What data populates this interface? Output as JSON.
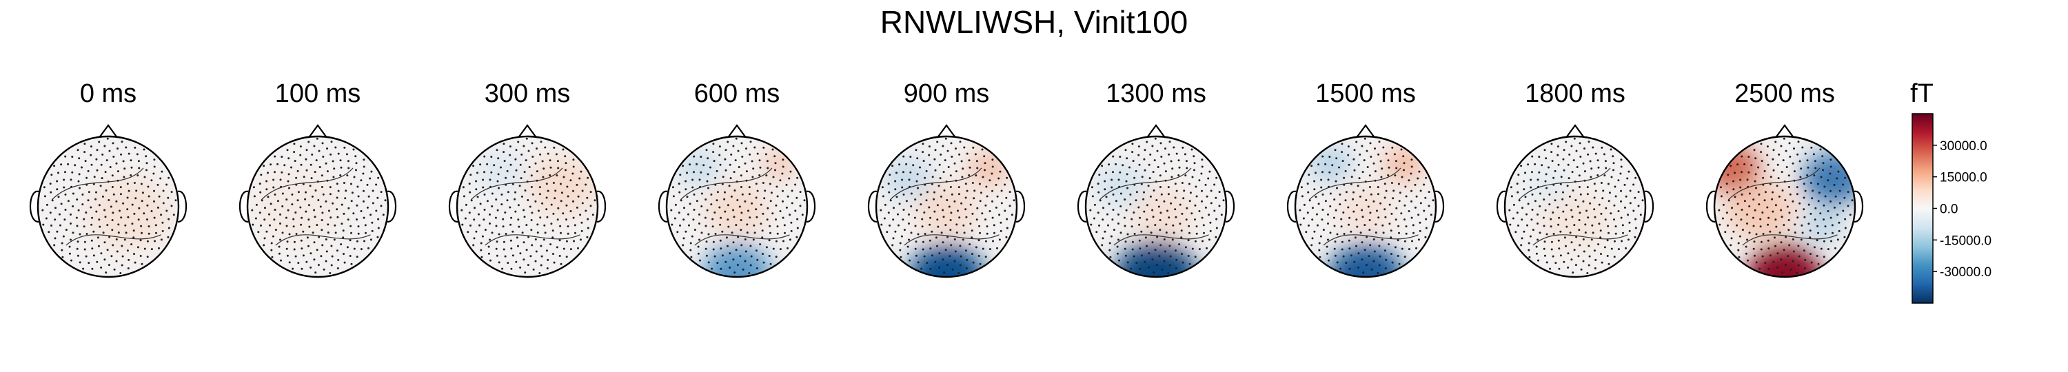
{
  "chart_data": {
    "type": "heatmap",
    "title": "RNWLIWSH, Vinit100",
    "colorbar": {
      "unit": "fT",
      "ticks": [
        30000,
        15000,
        0,
        -15000,
        -30000
      ],
      "tick_labels": [
        "30000.0",
        "15000.0",
        "0.0",
        "-15000.0",
        "-30000.0"
      ],
      "range": [
        -45000,
        45000
      ],
      "colormap": "RdBu_r"
    },
    "panels": [
      {
        "time": "0 ms",
        "pattern": "weak, mostly near zero with slight positive tint"
      },
      {
        "time": "100 ms",
        "pattern": "weak, near zero"
      },
      {
        "time": "300 ms",
        "pattern": "weak positive right, weak negative left-frontal"
      },
      {
        "time": "600 ms",
        "pattern": "negative occipital, weak positive central"
      },
      {
        "time": "900 ms",
        "pattern": "strong negative occipital"
      },
      {
        "time": "1300 ms",
        "pattern": "strong negative occipital"
      },
      {
        "time": "1500 ms",
        "pattern": "strong negative occipital, positive right-frontal"
      },
      {
        "time": "1800 ms",
        "pattern": "weak, near zero"
      },
      {
        "time": "2500 ms",
        "pattern": "strong positive occipital and left-frontal, negative right-frontal"
      }
    ]
  }
}
